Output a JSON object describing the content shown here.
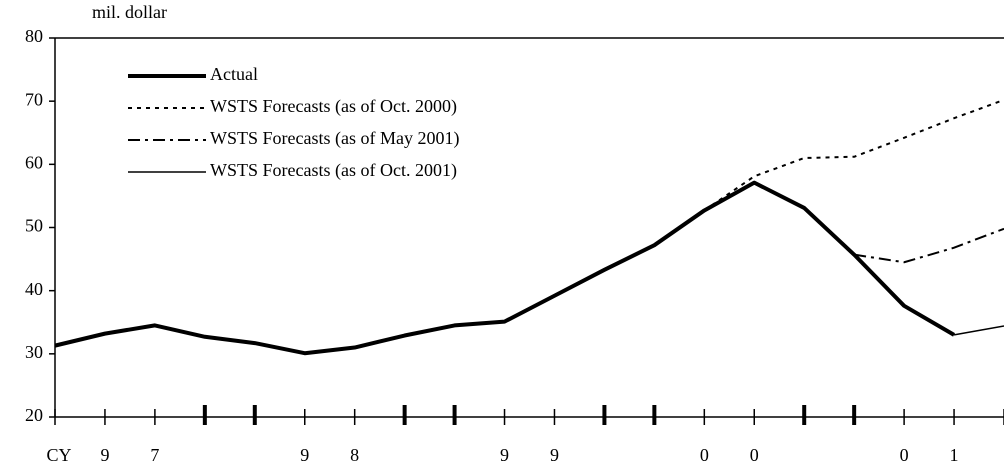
{
  "chart_data": {
    "type": "line",
    "y_axis_label": "mil. dollar",
    "categories": [
      "CY",
      "9",
      "7",
      null,
      null,
      "9",
      "8",
      null,
      null,
      "9",
      "9",
      null,
      null,
      "0",
      "0",
      null,
      null,
      "0",
      "1",
      null
    ],
    "series": [
      {
        "name": "Actual",
        "color": "#000000",
        "style": "solid",
        "width": 4,
        "values": [
          31.3,
          33.2,
          34.5,
          32.7,
          31.7,
          30.1,
          31.0,
          32.9,
          34.5,
          35.1,
          39.2,
          43.3,
          47.2,
          52.7,
          57.1,
          53.1,
          45.7,
          37.6,
          33.0,
          null
        ]
      },
      {
        "name": "WSTS Forecasts (as of Oct. 2000)",
        "color": "#000000",
        "style": "dotted",
        "width": 2,
        "values": [
          null,
          null,
          null,
          null,
          null,
          null,
          null,
          null,
          null,
          null,
          null,
          null,
          null,
          52.7,
          58.1,
          61.0,
          61.2,
          64.2,
          67.3,
          70.2
        ]
      },
      {
        "name": "WSTS Forecasts (as of May 2001)",
        "color": "#000000",
        "style": "dashdot",
        "width": 2,
        "values": [
          null,
          null,
          null,
          null,
          null,
          null,
          null,
          null,
          null,
          null,
          null,
          null,
          null,
          null,
          null,
          null,
          45.7,
          44.5,
          46.8,
          49.8
        ]
      },
      {
        "name": "WSTS Forecasts (as of Oct. 2001)",
        "color": "#000000",
        "style": "solid",
        "width": 1.5,
        "values": [
          null,
          null,
          null,
          null,
          null,
          null,
          null,
          null,
          null,
          null,
          null,
          null,
          null,
          null,
          null,
          null,
          null,
          null,
          33.0,
          34.4
        ]
      }
    ],
    "ylim": [
      20,
      80
    ],
    "yticks": [
      20,
      30,
      40,
      50,
      60,
      70,
      80
    ],
    "grid": false,
    "legend": "upper left"
  }
}
